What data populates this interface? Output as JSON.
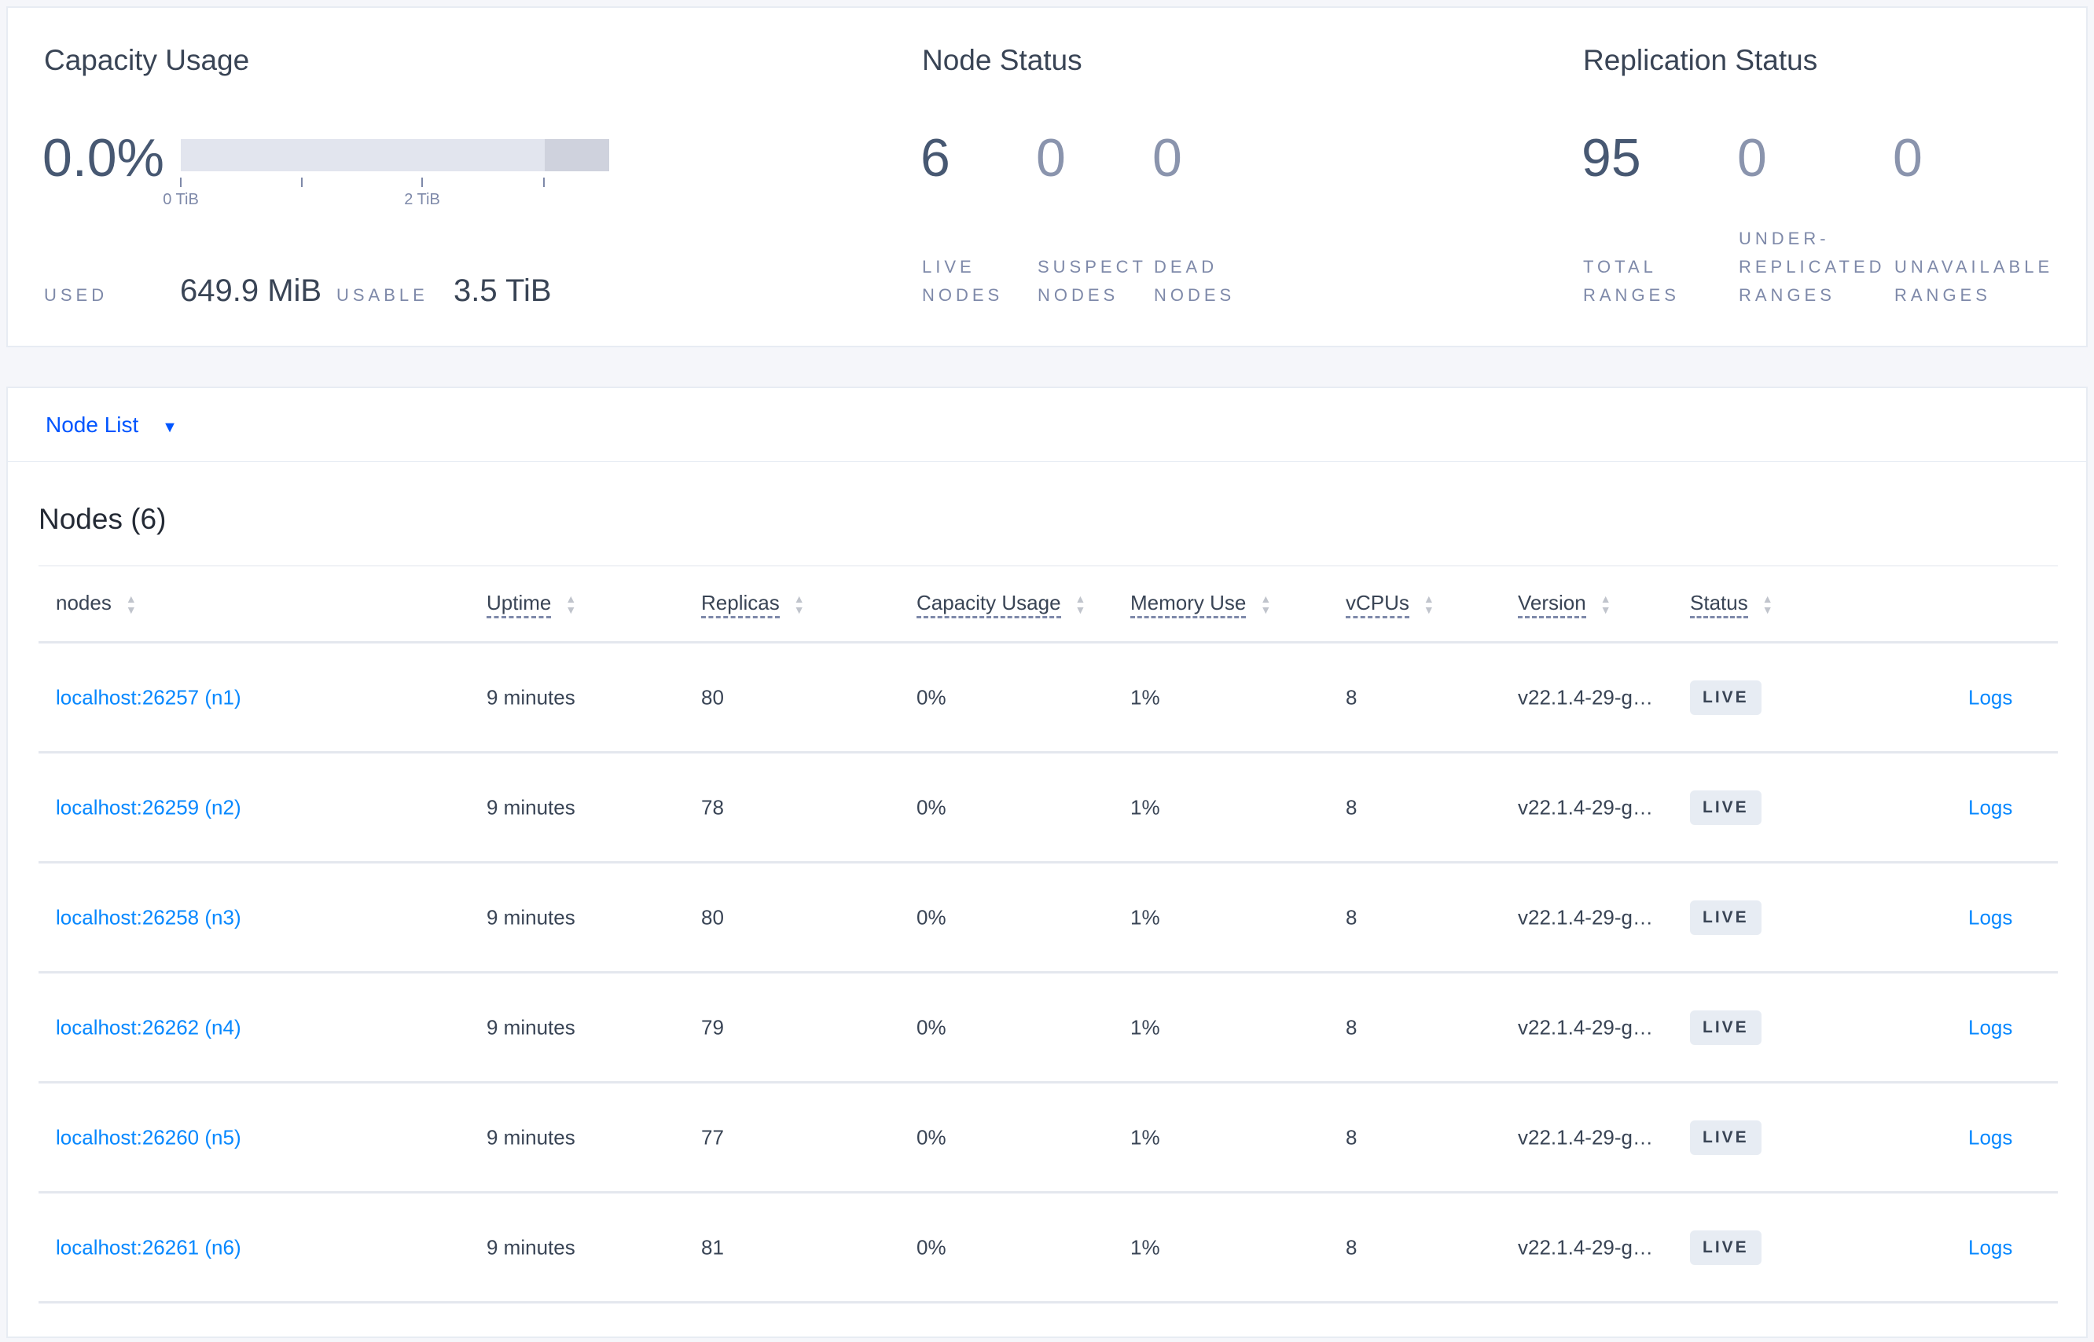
{
  "capacity": {
    "title": "Capacity Usage",
    "percent": "0.0%",
    "used_fraction": 0.0002,
    "usable_fraction_of_axis": 0.85,
    "ticks": [
      "0 TiB",
      "2 TiB"
    ],
    "used_label": "USED",
    "used_value": "649.9 MiB",
    "usable_label": "USABLE",
    "usable_value": "3.5 TiB"
  },
  "node_status": {
    "title": "Node Status",
    "stats": [
      {
        "value": "6",
        "line1": "LIVE",
        "line2": "NODES"
      },
      {
        "value": "0",
        "line1": "SUSPECT",
        "line2": "NODES"
      },
      {
        "value": "0",
        "line1": "DEAD",
        "line2": "NODES"
      }
    ]
  },
  "replication": {
    "title": "Replication Status",
    "stats": [
      {
        "value": "95",
        "line0": "",
        "line1": "TOTAL",
        "line2": "RANGES"
      },
      {
        "value": "0",
        "line0": "UNDER-",
        "line1": "REPLICATED",
        "line2": "RANGES"
      },
      {
        "value": "0",
        "line0": "",
        "line1": "UNAVAILABLE",
        "line2": "RANGES"
      }
    ]
  },
  "node_list": {
    "dropdown": "Node List",
    "heading": "Nodes (6)",
    "columns": [
      "nodes",
      "Uptime",
      "Replicas",
      "Capacity Usage",
      "Memory Use",
      "vCPUs",
      "Version",
      "Status"
    ],
    "rows": [
      {
        "node": "localhost:26257 (n1)",
        "uptime": "9 minutes",
        "replicas": "80",
        "capacity": "0%",
        "memory": "1%",
        "vcpus": "8",
        "version": "v22.1.4-29-g…",
        "status": "LIVE",
        "logs": "Logs"
      },
      {
        "node": "localhost:26259 (n2)",
        "uptime": "9 minutes",
        "replicas": "78",
        "capacity": "0%",
        "memory": "1%",
        "vcpus": "8",
        "version": "v22.1.4-29-g…",
        "status": "LIVE",
        "logs": "Logs"
      },
      {
        "node": "localhost:26258 (n3)",
        "uptime": "9 minutes",
        "replicas": "80",
        "capacity": "0%",
        "memory": "1%",
        "vcpus": "8",
        "version": "v22.1.4-29-g…",
        "status": "LIVE",
        "logs": "Logs"
      },
      {
        "node": "localhost:26262 (n4)",
        "uptime": "9 minutes",
        "replicas": "79",
        "capacity": "0%",
        "memory": "1%",
        "vcpus": "8",
        "version": "v22.1.4-29-g…",
        "status": "LIVE",
        "logs": "Logs"
      },
      {
        "node": "localhost:26260 (n5)",
        "uptime": "9 minutes",
        "replicas": "77",
        "capacity": "0%",
        "memory": "1%",
        "vcpus": "8",
        "version": "v22.1.4-29-g…",
        "status": "LIVE",
        "logs": "Logs"
      },
      {
        "node": "localhost:26261 (n6)",
        "uptime": "9 minutes",
        "replicas": "81",
        "capacity": "0%",
        "memory": "1%",
        "vcpus": "8",
        "version": "v22.1.4-29-g…",
        "status": "LIVE",
        "logs": "Logs"
      }
    ]
  }
}
